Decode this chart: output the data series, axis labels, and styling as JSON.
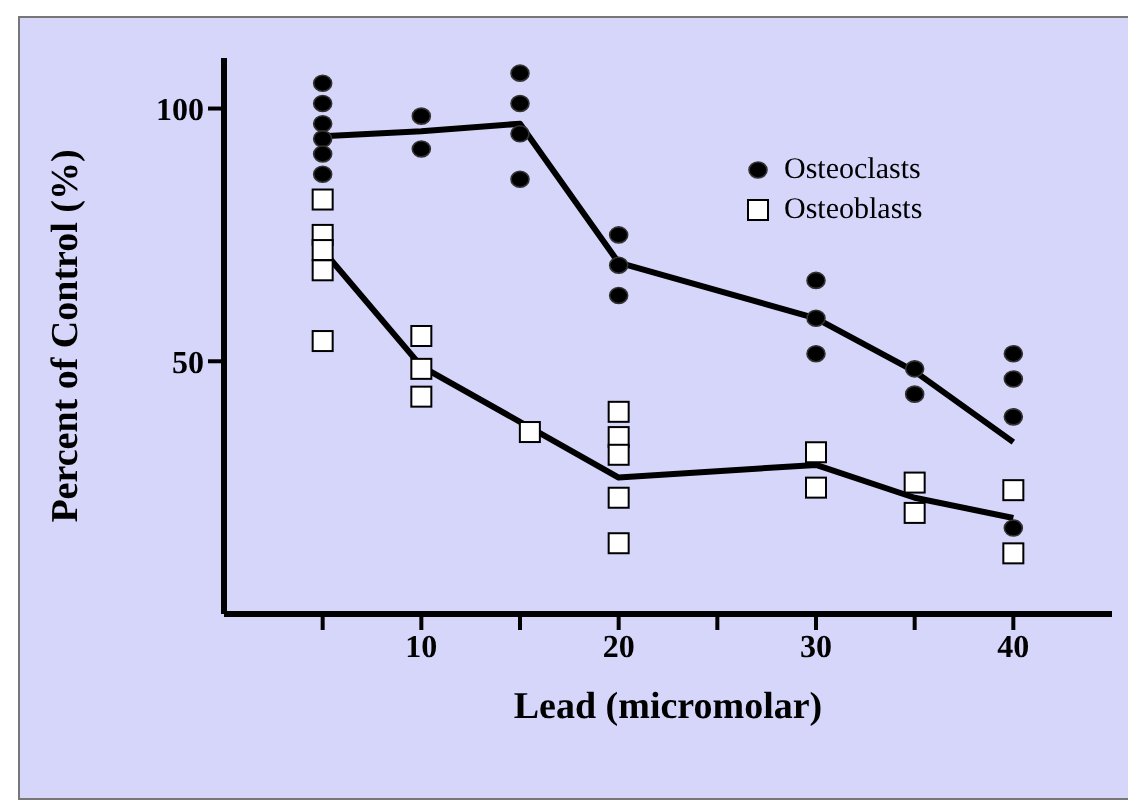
{
  "chart_data": {
    "type": "scatter",
    "xlabel": "Lead (micromolar)",
    "ylabel": "Percent of Control (%)",
    "xlim": [
      0,
      45
    ],
    "ylim": [
      0,
      110
    ],
    "xticks": [
      {
        "value": 5,
        "label": null
      },
      10,
      {
        "value": 15,
        "label": null
      },
      20,
      {
        "value": 25,
        "label": null
      },
      30,
      {
        "value": 35,
        "label": null
      },
      40
    ],
    "yticks": [
      50,
      100
    ],
    "grid": false,
    "legend": "top right",
    "series": [
      {
        "name": "Osteoclasts",
        "marker": "circle",
        "color": "#000000",
        "x": [
          5,
          5,
          5,
          5,
          5,
          5,
          10,
          10,
          15,
          15,
          15,
          15,
          20,
          20,
          20,
          30,
          30,
          30,
          35,
          35,
          40,
          40,
          40,
          40
        ],
        "values": [
          105,
          101,
          97,
          94,
          91,
          87,
          98.5,
          92,
          107,
          101,
          95,
          86,
          75,
          69,
          63,
          66,
          58.5,
          51.5,
          48.5,
          43.5,
          51.5,
          46.5,
          39,
          17
        ]
      },
      {
        "name": "Osteoblasts",
        "marker": "square",
        "color": "#ffffff",
        "x": [
          5,
          5,
          5,
          5,
          5,
          10,
          10,
          10,
          15.5,
          20,
          20,
          20,
          20,
          20,
          30,
          30,
          35,
          35,
          40,
          40
        ],
        "values": [
          82,
          75,
          72,
          68,
          54,
          55,
          48.5,
          43,
          36,
          40,
          35,
          31.5,
          23,
          14,
          32,
          25,
          26,
          20,
          24.5,
          12
        ]
      },
      {
        "type": "line",
        "marker": "none",
        "color": "#000000",
        "x": [
          5,
          10,
          15,
          20,
          30,
          35,
          40
        ],
        "values": [
          94.5,
          95.5,
          97,
          69.5,
          58.5,
          48,
          34
        ]
      },
      {
        "type": "line",
        "marker": "none",
        "color": "#000000",
        "x": [
          5,
          10,
          20,
          30,
          35,
          40
        ],
        "values": [
          72,
          49,
          27,
          29.5,
          23,
          19
        ]
      }
    ]
  }
}
